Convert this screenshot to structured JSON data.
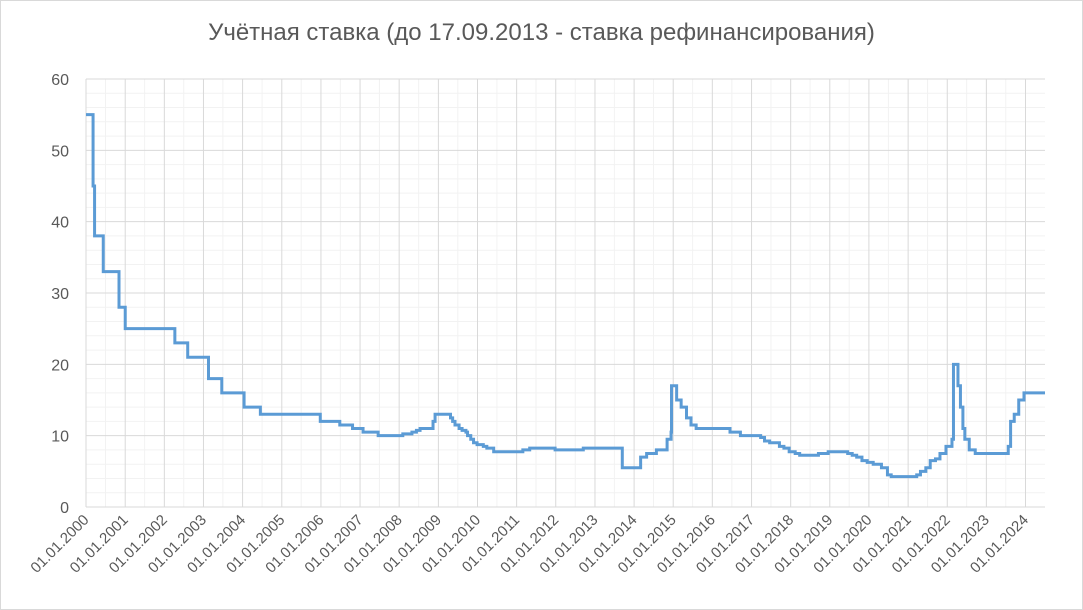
{
  "chart_data": {
    "type": "line",
    "title": "Учётная ставка (до 17.09.2013 - ставка рефинансирования)",
    "xlabel": "",
    "ylabel": "",
    "ylim": [
      0,
      60
    ],
    "yticks": [
      0,
      10,
      20,
      30,
      40,
      50,
      60
    ],
    "xlim": [
      "2000-01-01",
      "2024-07-01"
    ],
    "xticks": [
      "01.01.2000",
      "01.01.2001",
      "01.01.2002",
      "01.01.2003",
      "01.01.2004",
      "01.01.2005",
      "01.01.2006",
      "01.01.2007",
      "01.01.2008",
      "01.01.2009",
      "01.01.2010",
      "01.01.2011",
      "01.01.2012",
      "01.01.2013",
      "01.01.2014",
      "01.01.2015",
      "01.01.2016",
      "01.01.2017",
      "01.01.2018",
      "01.01.2019",
      "01.01.2020",
      "01.01.2021",
      "01.01.2022",
      "01.01.2023",
      "01.01.2024"
    ],
    "grid": true,
    "line_color": "#5b9bd5",
    "series": [
      {
        "points": [
          [
            "2000-01-01",
            55
          ],
          [
            "2000-03-07",
            45
          ],
          [
            "2000-03-21",
            38
          ],
          [
            "2000-06-10",
            33
          ],
          [
            "2000-11-04",
            28
          ],
          [
            "2001-01-01",
            25
          ],
          [
            "2002-04-09",
            23
          ],
          [
            "2002-08-07",
            21
          ],
          [
            "2003-02-17",
            18
          ],
          [
            "2003-06-21",
            16
          ],
          [
            "2004-01-15",
            14
          ],
          [
            "2004-06-15",
            13
          ],
          [
            "2005-12-26",
            12
          ],
          [
            "2006-06-26",
            11.5
          ],
          [
            "2006-10-23",
            11
          ],
          [
            "2007-01-29",
            10.5
          ],
          [
            "2007-06-19",
            10
          ],
          [
            "2008-02-04",
            10.25
          ],
          [
            "2008-04-29",
            10.5
          ],
          [
            "2008-06-10",
            10.75
          ],
          [
            "2008-07-14",
            11
          ],
          [
            "2008-11-12",
            12
          ],
          [
            "2008-12-01",
            13
          ],
          [
            "2009-04-24",
            12.5
          ],
          [
            "2009-05-14",
            12
          ],
          [
            "2009-06-05",
            11.5
          ],
          [
            "2009-07-13",
            11
          ],
          [
            "2009-08-10",
            10.75
          ],
          [
            "2009-09-15",
            10.5
          ],
          [
            "2009-09-30",
            10
          ],
          [
            "2009-10-30",
            9.5
          ],
          [
            "2009-11-25",
            9
          ],
          [
            "2009-12-28",
            8.75
          ],
          [
            "2010-02-24",
            8.5
          ],
          [
            "2010-03-29",
            8.25
          ],
          [
            "2010-06-01",
            7.75
          ],
          [
            "2011-02-28",
            8
          ],
          [
            "2011-05-03",
            8.25
          ],
          [
            "2011-12-26",
            8
          ],
          [
            "2012-09-14",
            8.25
          ],
          [
            "2013-09-13",
            5.5
          ],
          [
            "2014-01-01",
            5.5
          ],
          [
            "2014-03-03",
            7
          ],
          [
            "2014-04-28",
            7.5
          ],
          [
            "2014-07-28",
            8
          ],
          [
            "2014-11-05",
            9.5
          ],
          [
            "2014-12-12",
            10.5
          ],
          [
            "2014-12-16",
            17
          ],
          [
            "2015-02-02",
            15
          ],
          [
            "2015-03-16",
            14
          ],
          [
            "2015-05-05",
            12.5
          ],
          [
            "2015-06-16",
            11.5
          ],
          [
            "2015-08-03",
            11
          ],
          [
            "2016-06-14",
            10.5
          ],
          [
            "2016-09-19",
            10
          ],
          [
            "2017-03-27",
            9.75
          ],
          [
            "2017-05-02",
            9.25
          ],
          [
            "2017-06-19",
            9
          ],
          [
            "2017-09-18",
            8.5
          ],
          [
            "2017-10-30",
            8.25
          ],
          [
            "2017-12-18",
            7.75
          ],
          [
            "2018-02-12",
            7.5
          ],
          [
            "2018-03-26",
            7.25
          ],
          [
            "2018-09-17",
            7.5
          ],
          [
            "2018-12-17",
            7.75
          ],
          [
            "2019-06-17",
            7.5
          ],
          [
            "2019-07-29",
            7.25
          ],
          [
            "2019-09-09",
            7
          ],
          [
            "2019-10-28",
            6.5
          ],
          [
            "2019-12-16",
            6.25
          ],
          [
            "2020-02-10",
            6
          ],
          [
            "2020-04-27",
            5.5
          ],
          [
            "2020-06-22",
            4.5
          ],
          [
            "2020-07-27",
            4.25
          ],
          [
            "2021-03-22",
            4.5
          ],
          [
            "2021-04-26",
            5
          ],
          [
            "2021-06-15",
            5.5
          ],
          [
            "2021-07-26",
            6.5
          ],
          [
            "2021-09-13",
            6.75
          ],
          [
            "2021-10-25",
            7.5
          ],
          [
            "2021-12-20",
            8.5
          ],
          [
            "2022-02-14",
            9.5
          ],
          [
            "2022-02-28",
            20
          ],
          [
            "2022-04-11",
            17
          ],
          [
            "2022-05-04",
            14
          ],
          [
            "2022-05-27",
            11
          ],
          [
            "2022-06-14",
            9.5
          ],
          [
            "2022-07-25",
            8
          ],
          [
            "2022-09-19",
            7.5
          ],
          [
            "2023-07-24",
            8.5
          ],
          [
            "2023-08-15",
            12
          ],
          [
            "2023-09-18",
            13
          ],
          [
            "2023-10-30",
            15
          ],
          [
            "2023-12-18",
            16
          ],
          [
            "2024-07-01",
            16
          ]
        ]
      }
    ]
  }
}
